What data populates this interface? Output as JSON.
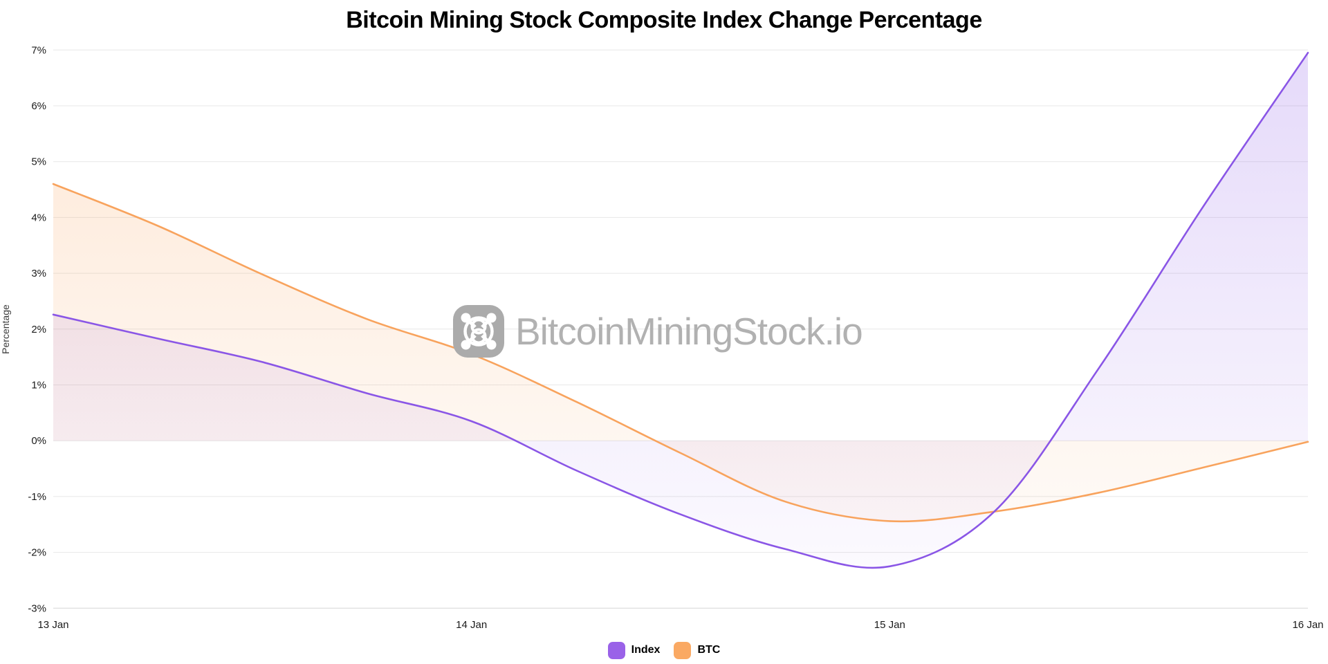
{
  "title": "Bitcoin Mining Stock Composite Index Change Percentage",
  "watermark": {
    "text": "BitcoinMiningStock.io",
    "logo": "mining-fan-logo"
  },
  "legend": [
    {
      "label": "Index",
      "color": "#9a62e8"
    },
    {
      "label": "BTC",
      "color": "#faa963"
    }
  ],
  "colors": {
    "index_line": "#8a56e6",
    "btc_line": "#f8a35d",
    "gridline": "#e7e7e7",
    "axis_line": "#d6d6d6",
    "tick_label": "#1a1a1a",
    "watermark_gray": "#ababab"
  },
  "chart_data": {
    "type": "area",
    "title": "Bitcoin Mining Stock Composite Index Change Percentage",
    "xlabel": "",
    "ylabel": "Percentage",
    "x_tick_labels": [
      "13 Jan",
      "14 Jan",
      "15 Jan",
      "16 Jan"
    ],
    "x_tick_positions": [
      0,
      1,
      2,
      3
    ],
    "x_range": [
      0,
      3
    ],
    "ylim": [
      -3,
      7
    ],
    "y_tick_step": 1,
    "y_tick_suffix": "%",
    "grid": "horizontal",
    "legend_position": "bottom",
    "baseline": 0,
    "x_unit": "days since 13 Jan",
    "x": [
      0,
      0.25,
      0.5,
      0.75,
      1.0,
      1.25,
      1.5,
      1.75,
      2.0,
      2.25,
      2.5,
      2.75,
      3.0
    ],
    "series": [
      {
        "name": "Index",
        "color": "#8a56e6",
        "values": [
          2.26,
          1.83,
          1.41,
          0.85,
          0.35,
          -0.53,
          -1.32,
          -1.94,
          -2.25,
          -1.27,
          1.3,
          4.2,
          6.95
        ]
      },
      {
        "name": "BTC",
        "color": "#f8a35d",
        "values": [
          4.6,
          3.85,
          2.98,
          2.18,
          1.55,
          0.7,
          -0.22,
          -1.09,
          -1.44,
          -1.27,
          -0.93,
          -0.48,
          -0.02
        ]
      }
    ]
  }
}
